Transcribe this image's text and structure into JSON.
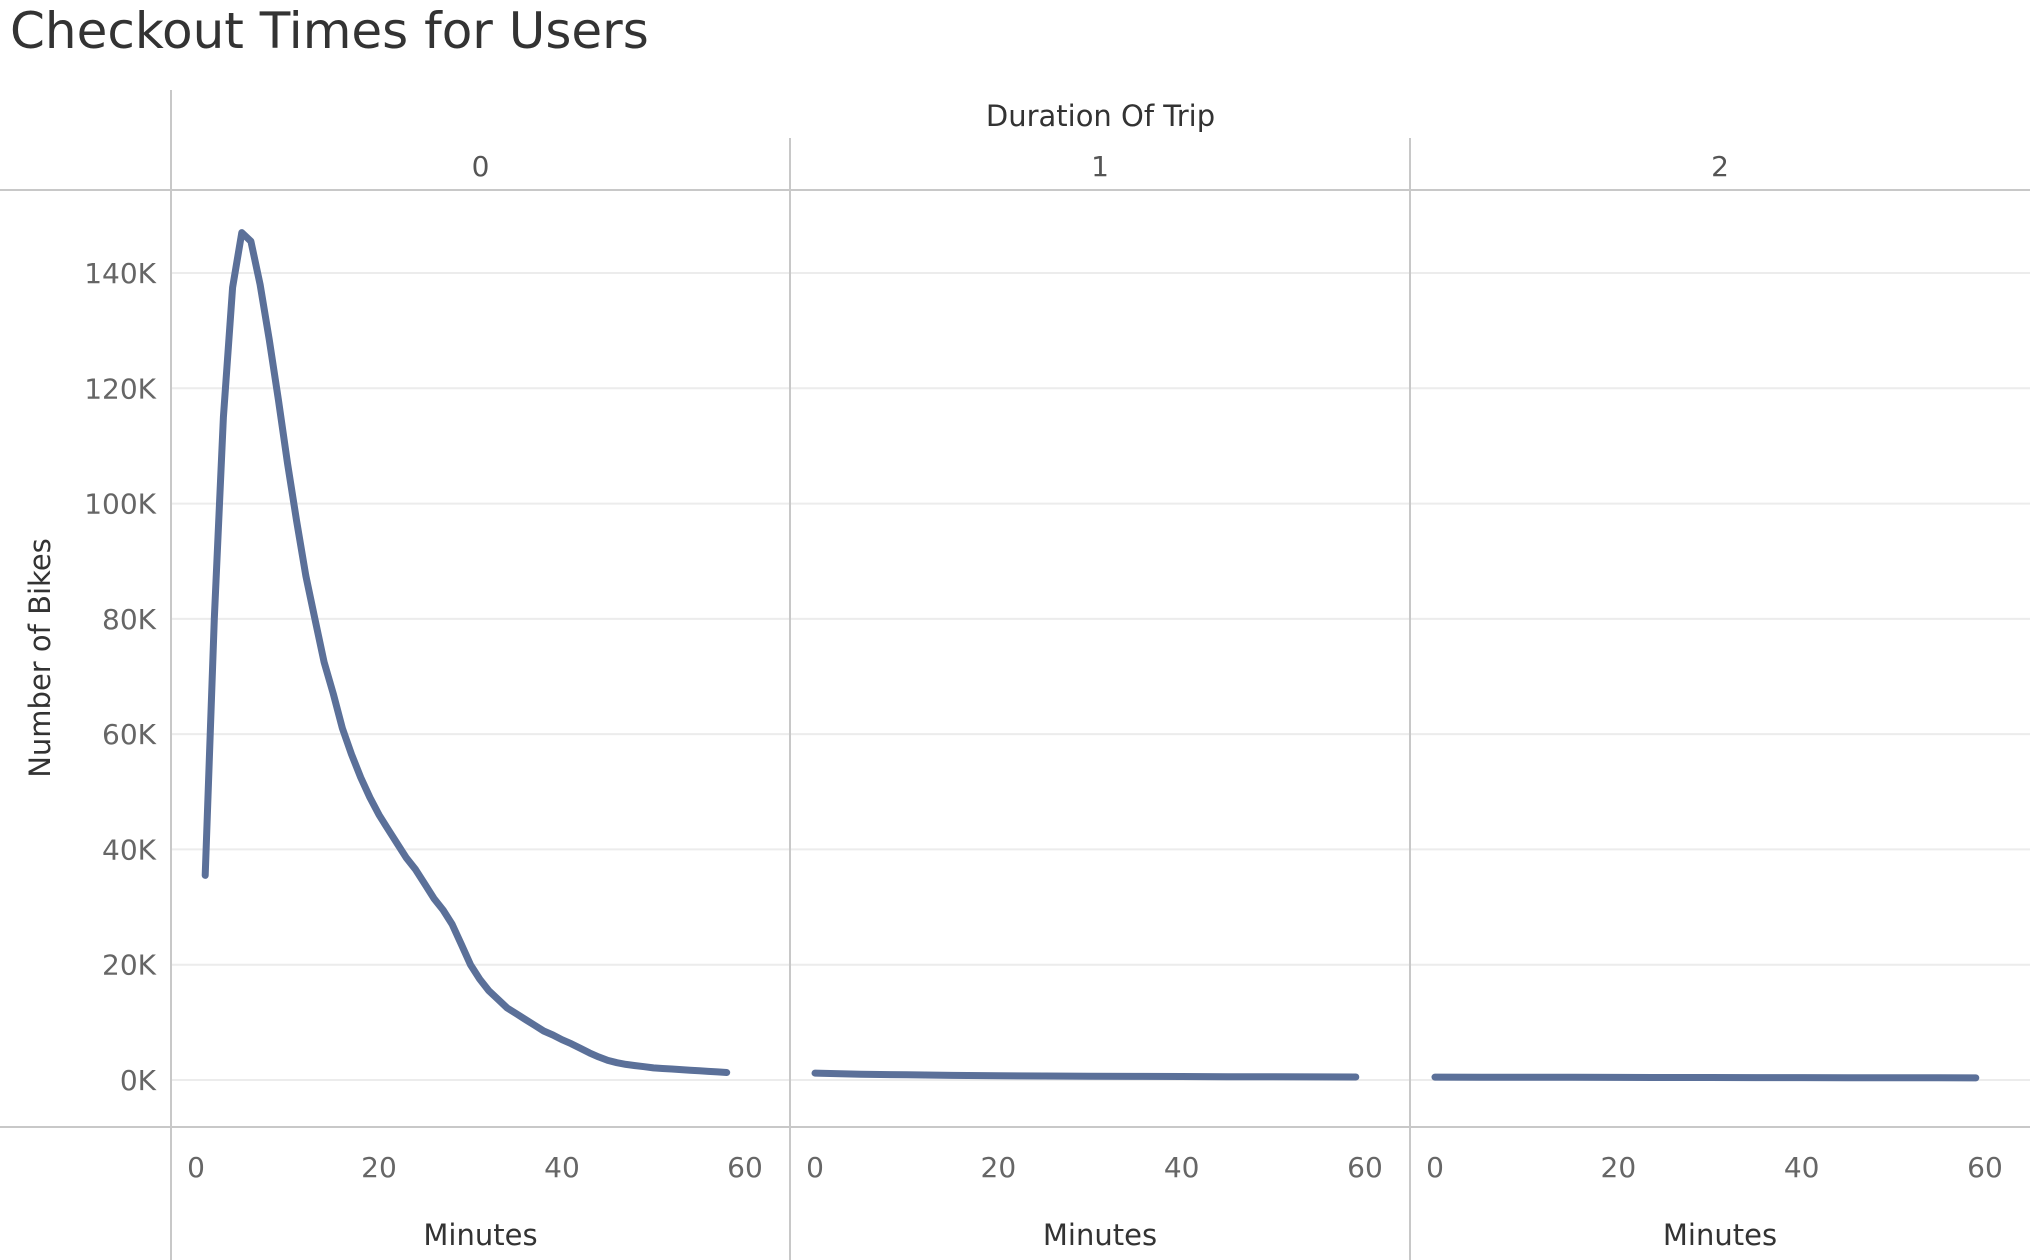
{
  "chart_data": {
    "type": "line",
    "title": "Checkout Times for Users",
    "column_header": "Duration Of Trip",
    "ylabel": "Number of Bikes",
    "xlabel": "Minutes",
    "ylim": [
      0,
      150000
    ],
    "yticks": [
      0,
      20000,
      40000,
      60000,
      80000,
      100000,
      120000,
      140000
    ],
    "ytick_labels": [
      "0K",
      "20K",
      "40K",
      "60K",
      "80K",
      "100K",
      "120K",
      "140K"
    ],
    "xlim": [
      0,
      60
    ],
    "xticks": [
      0,
      20,
      40,
      60
    ],
    "xtick_labels": [
      "0",
      "20",
      "40",
      "60"
    ],
    "grid": true,
    "line_color": "#5b7099",
    "panels": [
      {
        "name": "0",
        "x": [
          1,
          2,
          3,
          4,
          5,
          6,
          7,
          8,
          9,
          10,
          11,
          12,
          13,
          14,
          15,
          16,
          17,
          18,
          19,
          20,
          21,
          22,
          23,
          24,
          25,
          26,
          27,
          28,
          29,
          30,
          31,
          32,
          33,
          34,
          35,
          36,
          37,
          38,
          39,
          40,
          41,
          42,
          43,
          44,
          45,
          46,
          47,
          48,
          49,
          50,
          51,
          52,
          53,
          54,
          55,
          56,
          57,
          58
        ],
        "values": [
          35500,
          80000,
          115000,
          137500,
          147000,
          145500,
          138000,
          128500,
          118000,
          107000,
          97000,
          87500,
          80000,
          72500,
          67000,
          61000,
          56500,
          52500,
          49000,
          46000,
          43500,
          41000,
          38500,
          36500,
          34000,
          31500,
          29500,
          27000,
          23500,
          20000,
          17500,
          15500,
          14000,
          12500,
          11500,
          10500,
          9500,
          8500,
          7800,
          7000,
          6300,
          5500,
          4700,
          4000,
          3400,
          3000,
          2700,
          2500,
          2300,
          2100,
          2000,
          1900,
          1800,
          1700,
          1600,
          1500,
          1400,
          1300
        ]
      },
      {
        "name": "1",
        "x": [
          0,
          5,
          10,
          15,
          20,
          25,
          30,
          35,
          40,
          45,
          50,
          55,
          59
        ],
        "values": [
          1200,
          1000,
          900,
          800,
          750,
          700,
          650,
          620,
          600,
          580,
          560,
          540,
          520
        ]
      },
      {
        "name": "2",
        "x": [
          0,
          5,
          10,
          15,
          20,
          25,
          30,
          35,
          40,
          45,
          50,
          55,
          59
        ],
        "values": [
          500,
          480,
          470,
          460,
          450,
          440,
          430,
          420,
          410,
          400,
          390,
          380,
          370
        ]
      }
    ]
  }
}
